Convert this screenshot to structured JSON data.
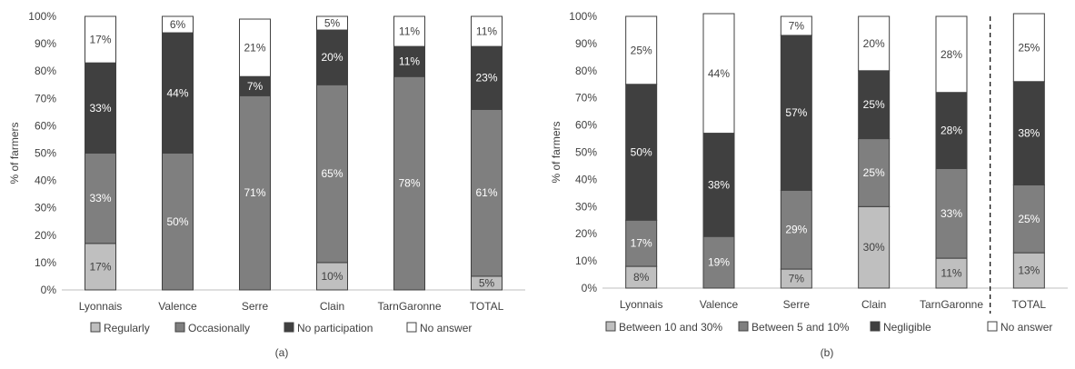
{
  "chart_data": [
    {
      "type": "bar",
      "stacked": true,
      "panel_label": "(a)",
      "title": "",
      "xlabel": "",
      "ylabel": "% of farmers",
      "ylim": [
        0,
        100
      ],
      "yticks": [
        "0%",
        "10%",
        "20%",
        "30%",
        "40%",
        "50%",
        "60%",
        "70%",
        "80%",
        "90%",
        "100%"
      ],
      "grid": false,
      "legend_position": "bottom",
      "categories": [
        "Lyonnais",
        "Valence",
        "Serre",
        "Clain",
        "TarnGaronne",
        "TOTAL"
      ],
      "series": [
        {
          "name": "Regularly",
          "color": "#bfbfbf",
          "values": [
            17,
            0,
            0,
            10,
            0,
            5
          ],
          "labels": [
            "17%",
            "",
            "",
            "10%",
            "",
            "5%"
          ]
        },
        {
          "name": "Occasionally",
          "color": "#7f7f7f",
          "values": [
            33,
            50,
            71,
            65,
            78,
            61
          ],
          "labels": [
            "33%",
            "50%",
            "71%",
            "65%",
            "78%",
            "61%"
          ]
        },
        {
          "name": "No participation",
          "color": "#404040",
          "values": [
            33,
            44,
            7,
            20,
            11,
            23
          ],
          "labels": [
            "33%",
            "44%",
            "7%",
            "20%",
            "11%",
            "23%"
          ]
        },
        {
          "name": "No answer",
          "color": "#ffffff",
          "values": [
            17,
            6,
            21,
            5,
            11,
            11
          ],
          "labels": [
            "17%",
            "6%",
            "21%",
            "5%",
            "11%",
            "11%"
          ]
        }
      ]
    },
    {
      "type": "bar",
      "stacked": true,
      "panel_label": "(b)",
      "title": "",
      "xlabel": "",
      "ylabel": "% of farmers",
      "ylim": [
        0,
        100
      ],
      "yticks": [
        "0%",
        "10%",
        "20%",
        "30%",
        "40%",
        "50%",
        "60%",
        "70%",
        "80%",
        "90%",
        "100%"
      ],
      "grid": false,
      "legend_position": "bottom",
      "separator_before": "TOTAL",
      "categories": [
        "Lyonnais",
        "Valence",
        "Serre",
        "Clain",
        "TarnGaronne",
        "TOTAL"
      ],
      "series": [
        {
          "name": "Between 10 and 30%",
          "color": "#bfbfbf",
          "values": [
            8,
            0,
            7,
            30,
            11,
            13
          ],
          "labels": [
            "8%",
            "",
            "7%",
            "30%",
            "11%",
            "13%"
          ]
        },
        {
          "name": "Between 5 and 10%",
          "color": "#7f7f7f",
          "values": [
            17,
            19,
            29,
            25,
            33,
            25
          ],
          "labels": [
            "17%",
            "19%",
            "29%",
            "25%",
            "33%",
            "25%"
          ]
        },
        {
          "name": "Negligible",
          "color": "#404040",
          "values": [
            50,
            38,
            57,
            25,
            28,
            38
          ],
          "labels": [
            "50%",
            "38%",
            "57%",
            "25%",
            "28%",
            "38%"
          ]
        },
        {
          "name": "No answer",
          "color": "#ffffff",
          "values": [
            25,
            44,
            7,
            20,
            28,
            25
          ],
          "labels": [
            "25%",
            "44%",
            "7%",
            "20%",
            "28%",
            "25%"
          ]
        }
      ]
    }
  ]
}
